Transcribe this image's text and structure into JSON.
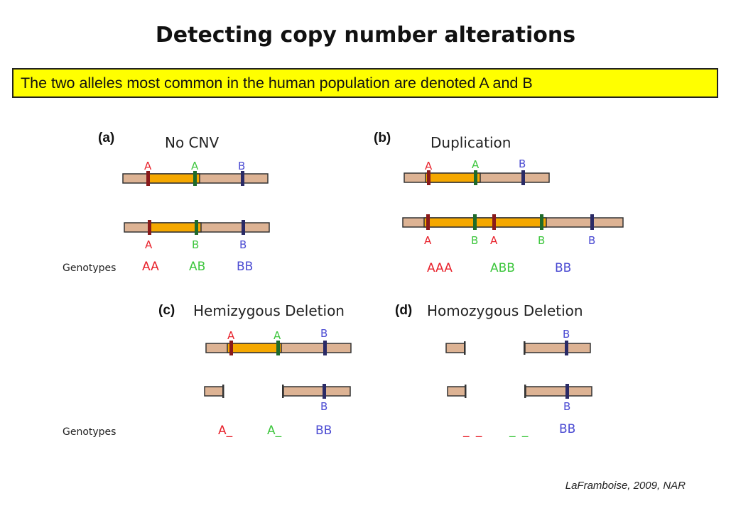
{
  "title": "Detecting copy number alterations",
  "banner": "The two alleles most common in the human population are denoted A and B",
  "panels": {
    "a": {
      "letter": "(a)",
      "label": "No CNV"
    },
    "b": {
      "letter": "(b)",
      "label": "Duplication"
    },
    "c": {
      "letter": "(c)",
      "label": "Hemizygous Deletion"
    },
    "d": {
      "letter": "(d)",
      "label": "Homozygous Deletion"
    }
  },
  "genotypes_label": "Genotypes",
  "genotypes": {
    "a": [
      "AA",
      "AB",
      "BB"
    ],
    "b": [
      "AAA",
      "ABB",
      "BB"
    ],
    "c": [
      "A_",
      "A_",
      "BB"
    ],
    "d": [
      "_ _",
      "_ _",
      "BB"
    ]
  },
  "alleles": {
    "A": "A",
    "B": "B"
  },
  "colors": {
    "chromosome": "#ddb394",
    "segment": "#f5a800",
    "red": "#e8212b",
    "green": "#3dc63d",
    "blue": "#4a4ad2",
    "banner_bg": "#ffff00"
  },
  "citation": "LaFramboise, 2009, NAR"
}
